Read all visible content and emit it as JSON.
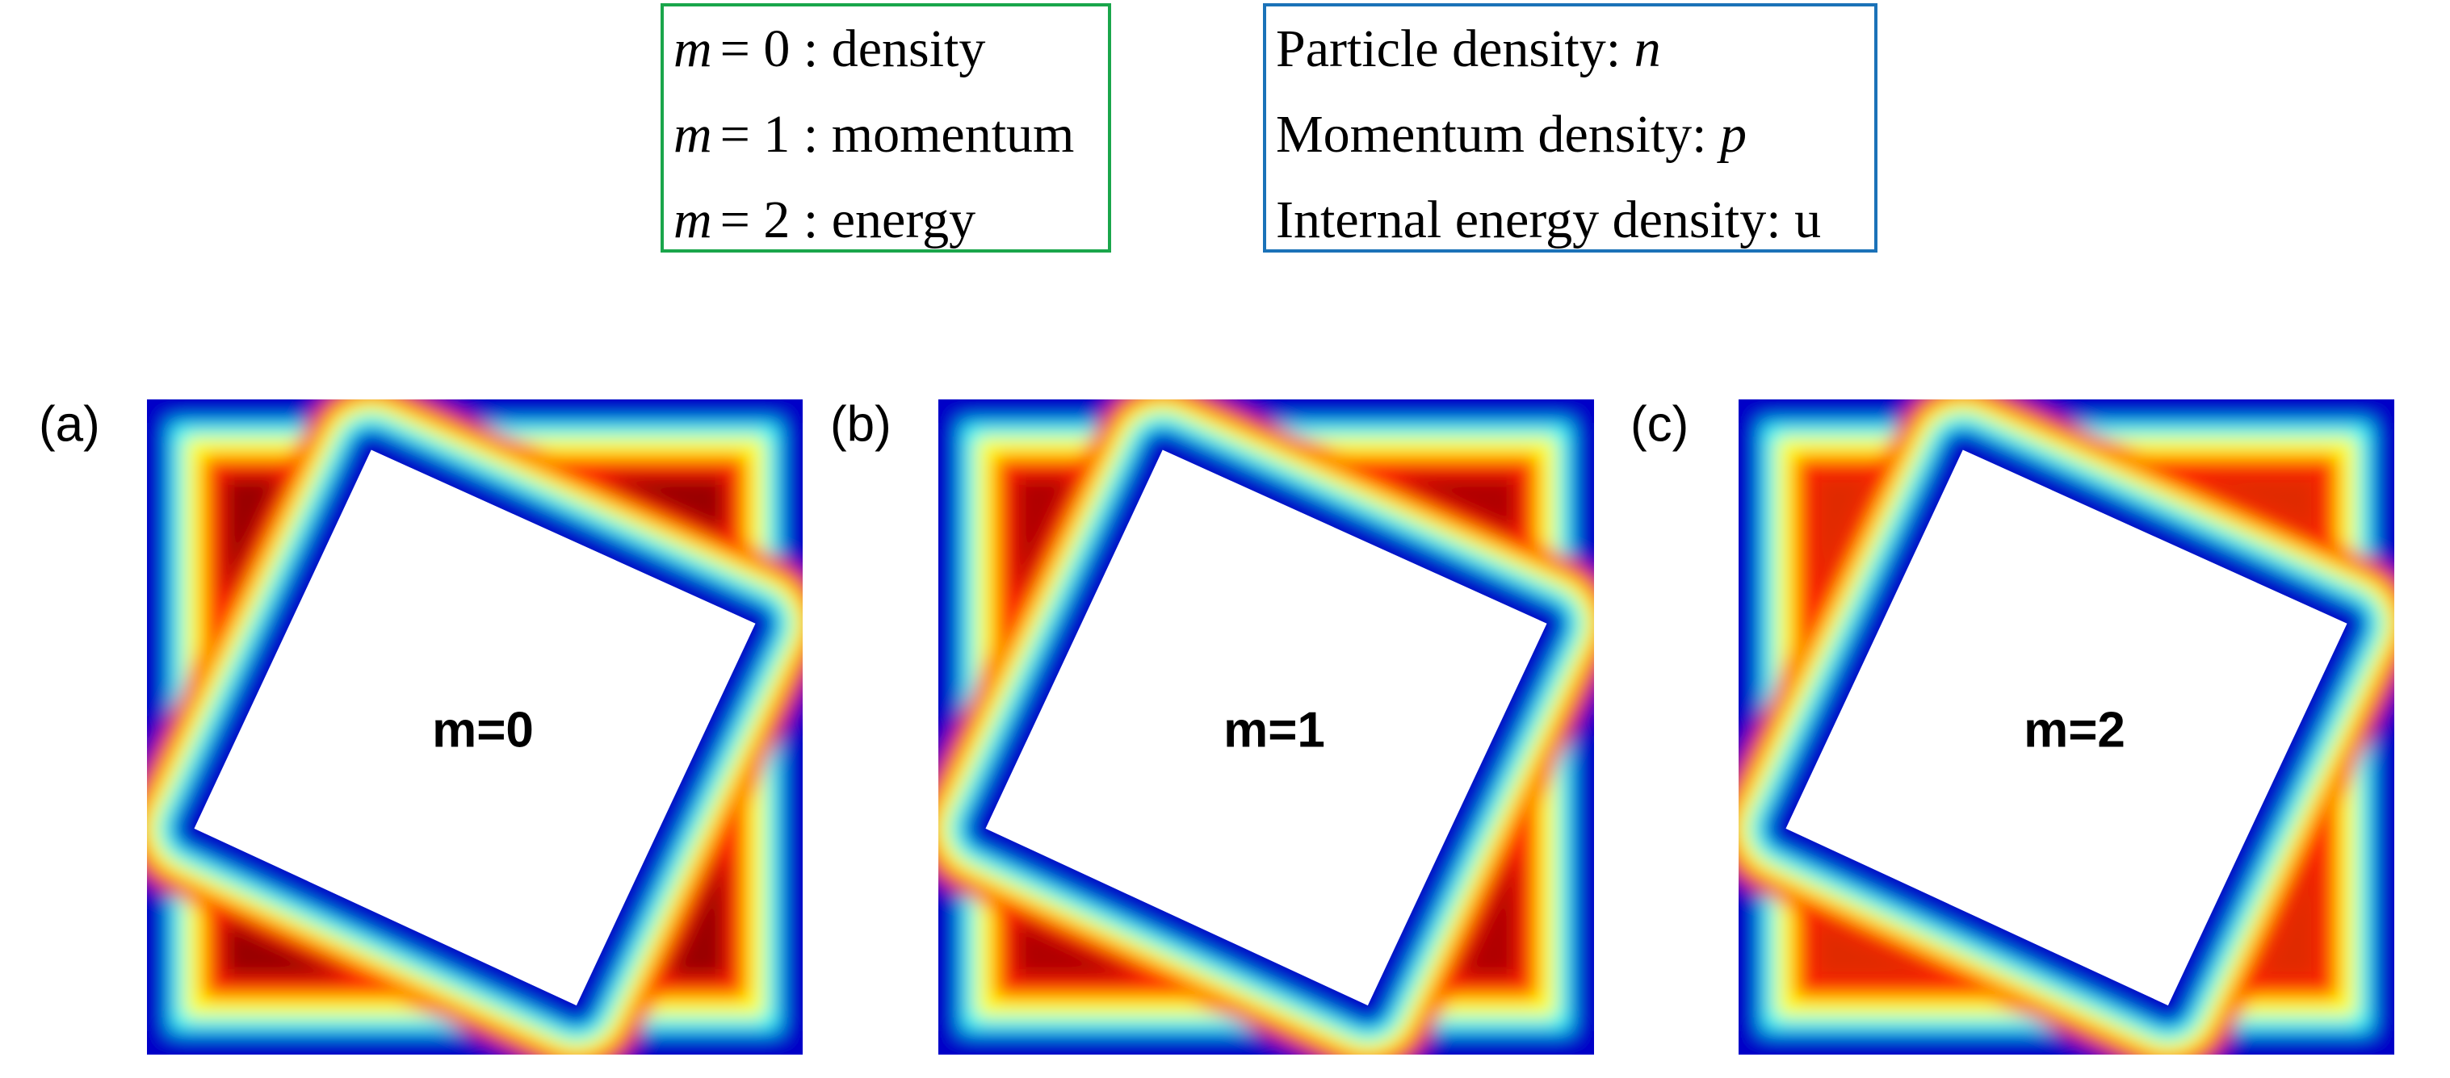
{
  "legend_left": {
    "items": [
      {
        "symbol": "m",
        "text": "= 0 : density"
      },
      {
        "symbol": "m",
        "text": "= 1 : momentum"
      },
      {
        "symbol": "m",
        "text": "= 2 : energy"
      }
    ]
  },
  "legend_right": {
    "items": [
      {
        "text": "Particle density:",
        "symbol": "n"
      },
      {
        "text": "Momentum density:",
        "symbol": "p"
      },
      {
        "text": "Internal energy density: u"
      }
    ]
  },
  "panels": [
    {
      "label": "(a)",
      "title": "m=0"
    },
    {
      "label": "(b)",
      "title": "m=1"
    },
    {
      "label": "(c)",
      "title": "m=2"
    }
  ]
}
